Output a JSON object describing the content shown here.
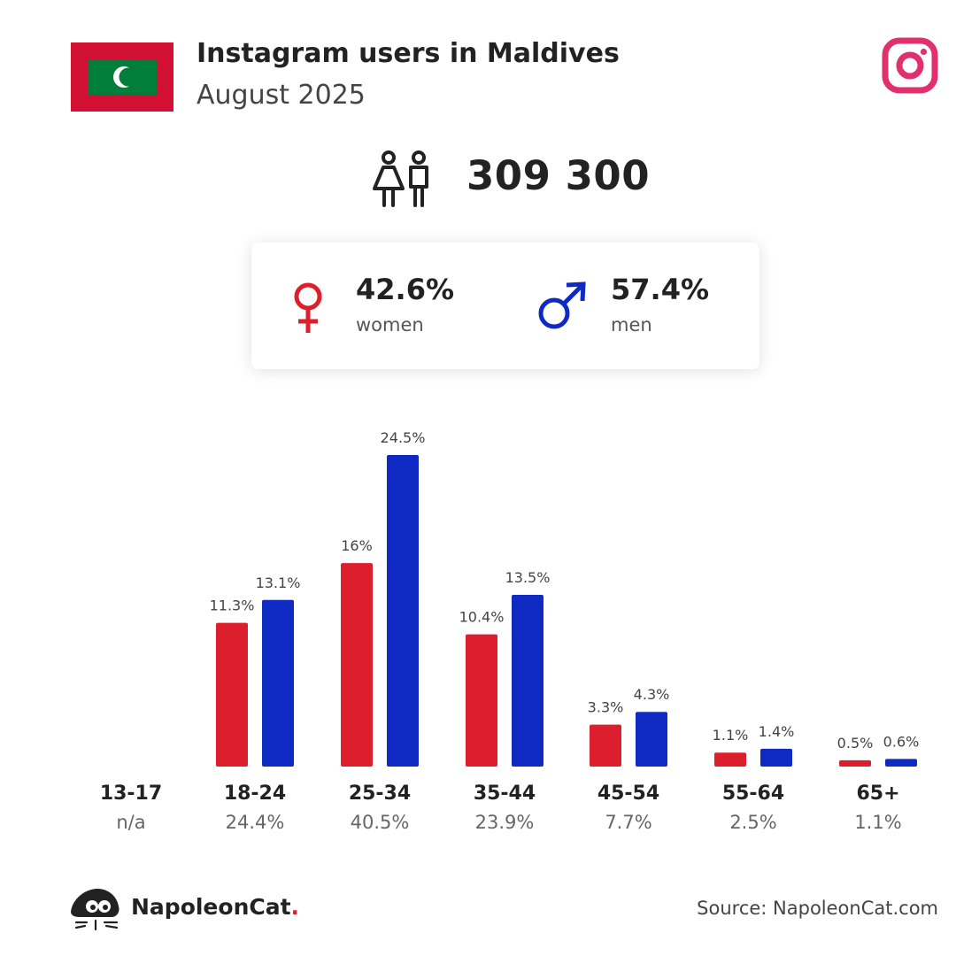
{
  "header": {
    "title": "Instagram users in Maldives",
    "subtitle": "August 2025"
  },
  "icons": {
    "flag": "maldives-flag-icon",
    "platform": "instagram-icon",
    "people": "people-icon",
    "female": "female-symbol-icon",
    "male": "male-symbol-icon",
    "brand": "napoleoncat-logo-icon"
  },
  "colors": {
    "women": "#dd1f2d",
    "men": "#0f2ac2",
    "instagram": "#e1306c",
    "flag_red": "#d21034",
    "flag_green": "#007e3a"
  },
  "total": {
    "value": "309 300"
  },
  "gender": {
    "women": {
      "pct": "42.6%",
      "label": "women"
    },
    "men": {
      "pct": "57.4%",
      "label": "men"
    }
  },
  "chart_data": {
    "type": "bar",
    "categories": [
      "13-17",
      "18-24",
      "25-34",
      "35-44",
      "45-54",
      "55-64",
      "65+"
    ],
    "category_totals": [
      "n/a",
      "24.4%",
      "40.5%",
      "23.9%",
      "7.7%",
      "2.5%",
      "1.1%"
    ],
    "series": [
      {
        "name": "women",
        "color": "#dd1f2d",
        "values": [
          null,
          11.3,
          16,
          10.4,
          3.3,
          1.1,
          0.5
        ],
        "labels": [
          "",
          "11.3%",
          "16%",
          "10.4%",
          "3.3%",
          "1.1%",
          "0.5%"
        ]
      },
      {
        "name": "men",
        "color": "#0f2ac2",
        "values": [
          null,
          13.1,
          24.5,
          13.5,
          4.3,
          1.4,
          0.6
        ],
        "labels": [
          "",
          "13.1%",
          "24.5%",
          "13.5%",
          "4.3%",
          "1.4%",
          "0.6%"
        ]
      }
    ],
    "ylim": [
      0,
      24.5
    ],
    "grid": false
  },
  "footer": {
    "brand_name": "NapoleonCat",
    "brand_dot": ".",
    "source": "Source: NapoleonCat.com"
  }
}
